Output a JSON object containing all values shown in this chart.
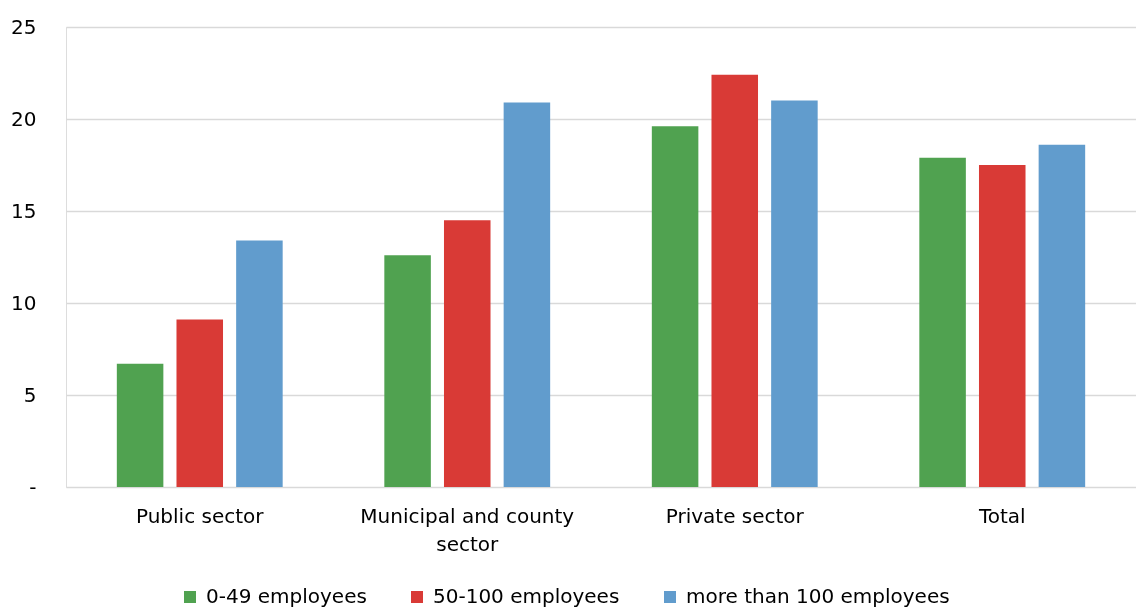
{
  "chart_data": {
    "type": "bar",
    "categories": [
      "Public sector",
      "Municipal and county sector",
      "Private sector",
      "Total"
    ],
    "series": [
      {
        "name": "0-49 employees",
        "color": "#50a250",
        "values": [
          6.7,
          12.6,
          19.6,
          17.9
        ]
      },
      {
        "name": "50-100 employees",
        "color": "#d93a36",
        "values": [
          9.1,
          14.5,
          22.4,
          17.5
        ]
      },
      {
        "name": "more than 100 employees",
        "color": "#619ccd",
        "values": [
          13.4,
          20.9,
          21.0,
          18.6
        ]
      }
    ],
    "ylim": [
      0,
      25
    ],
    "yticks": [
      {
        "value": 0,
        "label": "-"
      },
      5,
      10,
      15,
      20,
      25
    ],
    "grid": "y",
    "legend": "bottom"
  }
}
